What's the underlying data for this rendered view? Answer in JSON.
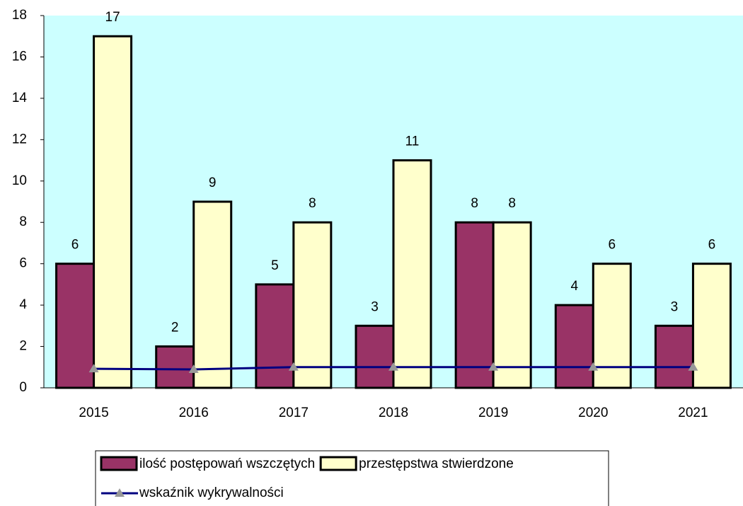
{
  "chart_data": {
    "type": "bar",
    "categories": [
      "2015",
      "2016",
      "2017",
      "2018",
      "2019",
      "2020",
      "2021"
    ],
    "series": [
      {
        "name": "ilość postępowań wszczętych",
        "color": "#993366",
        "values": [
          6,
          2,
          5,
          3,
          8,
          4,
          3
        ]
      },
      {
        "name": "przestępstwa stwierdzone",
        "color": "#ffffcc",
        "values": [
          17,
          9,
          8,
          11,
          8,
          6,
          6
        ]
      },
      {
        "name": "wskaźnik wykrywalności",
        "type": "line",
        "color": "#000080",
        "marker_color": "#999999",
        "values": [
          0.92,
          0.89,
          1,
          1,
          1,
          1,
          1
        ]
      }
    ],
    "ylim": [
      0,
      18
    ],
    "yticks": [
      0,
      2,
      4,
      6,
      8,
      10,
      12,
      14,
      16,
      18
    ],
    "plot_background": "#ccffff",
    "legend": "bottom"
  }
}
